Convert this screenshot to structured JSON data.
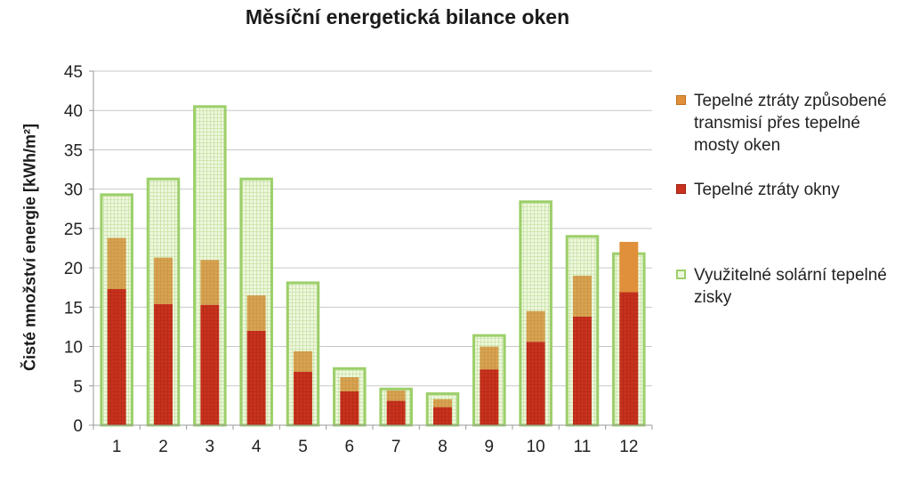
{
  "chart_data": {
    "type": "bar",
    "title": "Měsíční energetická bilance oken",
    "ylabel": "Čisté množství energie [kWh/m²]",
    "xlabel": "",
    "ylim": [
      0,
      45
    ],
    "yticks": [
      0,
      5,
      10,
      15,
      20,
      25,
      30,
      35,
      40,
      45
    ],
    "grid": true,
    "legend_position": "right",
    "categories": [
      "1",
      "2",
      "3",
      "4",
      "5",
      "6",
      "7",
      "8",
      "9",
      "10",
      "11",
      "12"
    ],
    "series": [
      {
        "name": "Tepelné ztráty okny",
        "values": [
          17.3,
          15.4,
          15.3,
          12.0,
          6.8,
          4.3,
          3.1,
          2.3,
          7.1,
          10.6,
          13.8,
          16.9
        ],
        "color": "#c8321e"
      },
      {
        "name": "Tepelné ztráty způsobené transmisí přes tepelné mosty oken",
        "values": [
          6.5,
          5.9,
          5.7,
          4.5,
          2.6,
          1.8,
          1.3,
          1.0,
          2.9,
          3.9,
          5.2,
          6.4
        ],
        "color": "#e0903a"
      },
      {
        "name": "Využitelné solární tepelné zisky",
        "values": [
          29.3,
          31.3,
          40.5,
          31.3,
          18.1,
          7.2,
          4.6,
          4.0,
          11.4,
          28.4,
          24.0,
          21.8
        ],
        "color": "#9ccf6a"
      }
    ]
  },
  "legend": [
    {
      "label": "Tepelné ztráty způsobené transmisí přes tepelné mosty oken",
      "color": "#e0903a",
      "icon": "square"
    },
    {
      "label": "Tepelné ztráty okny",
      "color": "#c8321e",
      "icon": "square"
    },
    {
      "label": "Využitelné solární tepelné zisky",
      "color": "#9ccf6a",
      "icon": "outlined-square"
    }
  ]
}
